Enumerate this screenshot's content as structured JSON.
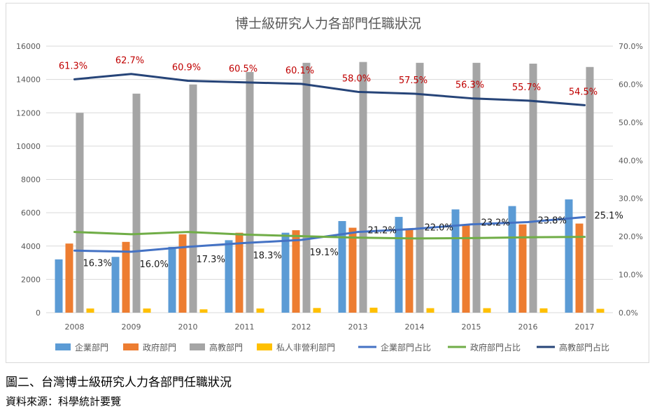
{
  "chart_data": {
    "type": "bar",
    "title": "博士級研究人力各部門任職狀況",
    "categories": [
      "2008",
      "2009",
      "2010",
      "2011",
      "2012",
      "2013",
      "2014",
      "2015",
      "2016",
      "2017"
    ],
    "y_left": {
      "min": 0,
      "max": 16000,
      "ticks": [
        "0",
        "2000",
        "4000",
        "6000",
        "8000",
        "10000",
        "12000",
        "14000",
        "16000"
      ]
    },
    "y_right": {
      "min": 0,
      "max": 70,
      "ticks": [
        "0.0%",
        "10.0%",
        "20.0%",
        "30.0%",
        "40.0%",
        "50.0%",
        "60.0%",
        "70.0%"
      ]
    },
    "grid": true,
    "legend_position": "bottom",
    "bar_series": [
      {
        "name": "企業部門",
        "color": "#5b9bd5",
        "values": [
          3200,
          3350,
          3950,
          4350,
          4800,
          5500,
          5750,
          6200,
          6400,
          6800
        ]
      },
      {
        "name": "政府部門",
        "color": "#ed7d31",
        "values": [
          4150,
          4250,
          4700,
          4800,
          4950,
          5100,
          5050,
          5250,
          5300,
          5350
        ]
      },
      {
        "name": "高教部門",
        "color": "#a5a5a5",
        "values": [
          12000,
          13150,
          13700,
          14450,
          15000,
          15050,
          15000,
          15000,
          14950,
          14750
        ]
      },
      {
        "name": "私人非營利部門",
        "color": "#ffc000",
        "values": [
          250,
          250,
          200,
          250,
          280,
          300,
          270,
          270,
          260,
          230
        ]
      }
    ],
    "line_series": [
      {
        "name": "企業部門占比",
        "color": "#4472c4",
        "values": [
          16.3,
          16.0,
          17.3,
          18.3,
          19.1,
          21.2,
          22.0,
          23.2,
          23.8,
          25.1
        ],
        "labels": [
          "16.3%",
          "16.0%",
          "17.3%",
          "18.3%",
          "19.1%",
          "21.2%",
          "22.0%",
          "23.2%",
          "23.8%",
          "25.1%"
        ]
      },
      {
        "name": "政府部門占比",
        "color": "#70ad47",
        "values": [
          21.2,
          20.6,
          21.2,
          20.5,
          20.1,
          19.7,
          19.5,
          19.6,
          19.8,
          19.9
        ],
        "labels": []
      },
      {
        "name": "高教部門占比",
        "color": "#264478",
        "values": [
          61.3,
          62.7,
          60.9,
          60.5,
          60.1,
          58.0,
          57.5,
          56.3,
          55.7,
          54.5
        ],
        "labels": [
          "61.3%",
          "62.7%",
          "60.9%",
          "60.5%",
          "60.1%",
          "58.0%",
          "57.5%",
          "56.3%",
          "55.7%",
          "54.5%"
        ]
      }
    ]
  },
  "captions": {
    "figure": "圖二、台灣博士級研究人力各部門任職狀況",
    "source": "資料來源：科學統計要覽"
  }
}
